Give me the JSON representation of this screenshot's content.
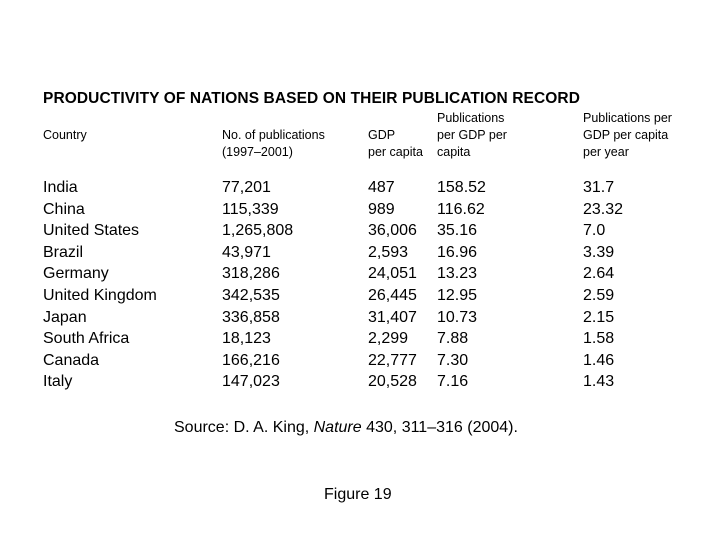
{
  "title": "PRODUCTIVITY OF NATIONS BASED ON THEIR PUBLICATION RECORD",
  "columns": {
    "country": "Country",
    "publications": "No. of publications\n(1997–2001)",
    "gdp": "GDP\nper capita",
    "pub_per_gdp": "Publications\nper GDP per\ncapita",
    "pub_per_gdp_year": "Publications per\nGDP per capita\nper year"
  },
  "rows": [
    {
      "country": "India",
      "publications": "77,201",
      "gdp": "487",
      "pub_per_gdp": "158.52",
      "pub_per_gdp_year": "31.7"
    },
    {
      "country": "China",
      "publications": "115,339",
      "gdp": "989",
      "pub_per_gdp": "116.62",
      "pub_per_gdp_year": "23.32"
    },
    {
      "country": "United States",
      "publications": "1,265,808",
      "gdp": "36,006",
      "pub_per_gdp": "35.16",
      "pub_per_gdp_year": "7.0"
    },
    {
      "country": "Brazil",
      "publications": "43,971",
      "gdp": "2,593",
      "pub_per_gdp": "16.96",
      "pub_per_gdp_year": "3.39"
    },
    {
      "country": "Germany",
      "publications": "318,286",
      "gdp": "24,051",
      "pub_per_gdp": "13.23",
      "pub_per_gdp_year": "2.64"
    },
    {
      "country": "United Kingdom",
      "publications": "342,535",
      "gdp": "26,445",
      "pub_per_gdp": "12.95",
      "pub_per_gdp_year": "2.59"
    },
    {
      "country": "Japan",
      "publications": "336,858",
      "gdp": "31,407",
      "pub_per_gdp": "10.73",
      "pub_per_gdp_year": "2.15"
    },
    {
      "country": "South Africa",
      "publications": "18,123",
      "gdp": "2,299",
      "pub_per_gdp": "7.88",
      "pub_per_gdp_year": "1.58"
    },
    {
      "country": "Canada",
      "publications": "166,216",
      "gdp": "22,777",
      "pub_per_gdp": "7.30",
      "pub_per_gdp_year": "1.46"
    },
    {
      "country": "Italy",
      "publications": "147,023",
      "gdp": "20,528",
      "pub_per_gdp": "7.16",
      "pub_per_gdp_year": "1.43"
    }
  ],
  "source": {
    "prefix": "Source: D. A. King, ",
    "journal": "Nature",
    "suffix": " 430, 311–316 (2004)."
  },
  "figure_label": "Figure 19"
}
